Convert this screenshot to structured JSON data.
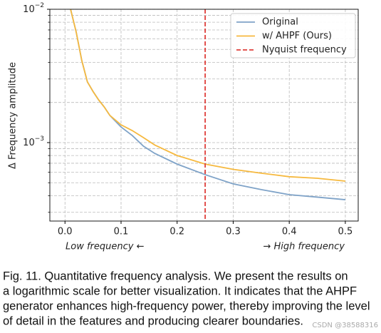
{
  "chart_data": {
    "type": "line",
    "ylabel": "Δ Frequency amplitude",
    "x_left_note": "Low frequency ←",
    "x_right_note": "→ High frequency",
    "x": [
      0.01,
      0.02,
      0.03,
      0.04,
      0.05,
      0.06,
      0.07,
      0.08,
      0.1,
      0.12,
      0.14,
      0.16,
      0.2,
      0.25,
      0.3,
      0.35,
      0.4,
      0.45,
      0.5
    ],
    "series": [
      {
        "name": "Original",
        "color": "#7fa3c8",
        "values": [
          0.01,
          0.00674,
          0.00412,
          0.00285,
          0.00242,
          0.00209,
          0.00185,
          0.0016,
          0.00131,
          0.00113,
          0.00094,
          0.00083,
          0.00069,
          0.000575,
          0.00049,
          0.000444,
          0.000407,
          0.00039,
          0.000373
        ]
      },
      {
        "name": "w/ AHPF (Ours)",
        "color": "#f6b93f",
        "values": [
          0.01,
          0.00674,
          0.00412,
          0.00285,
          0.00242,
          0.00209,
          0.00185,
          0.0016,
          0.00136,
          0.00123,
          0.00109,
          0.00096,
          0.0008,
          0.00069,
          0.00063,
          0.00059,
          0.000555,
          0.00054,
          0.000514
        ]
      }
    ],
    "vline": {
      "name": "Nyquist frequency",
      "x": 0.25,
      "color": "#e0403c"
    },
    "xlim": [
      -0.027,
      0.523
    ],
    "ylim": [
      0.000258,
      0.01
    ],
    "log_y": true,
    "grid": true,
    "legend": "upper right",
    "xticks": [
      {
        "value": 0,
        "label": "0.0"
      },
      0.1,
      0.2,
      0.3,
      0.4,
      0.5
    ],
    "yticks": [
      {
        "value": 0.001,
        "label": "10",
        "exponent": "−3"
      },
      {
        "value": 0.01,
        "label": "10",
        "exponent": "−2"
      }
    ],
    "yminorticks": [
      0.0003,
      0.0004,
      0.0005,
      0.0006,
      0.0007,
      0.0008,
      0.0009,
      0.002,
      0.003,
      0.004,
      0.005,
      0.006,
      0.007,
      0.008,
      0.009
    ]
  },
  "caption": [
    "Fig. 11.  Quantitative frequency analysis. We present the results on",
    "a logarithmic scale for better visualization. It indicates that the AHPF",
    "generator enhances high-frequency power, thereby improving the level",
    "of detail in the features and producing clearer boundaries."
  ],
  "watermark": "CSDN @38588316"
}
